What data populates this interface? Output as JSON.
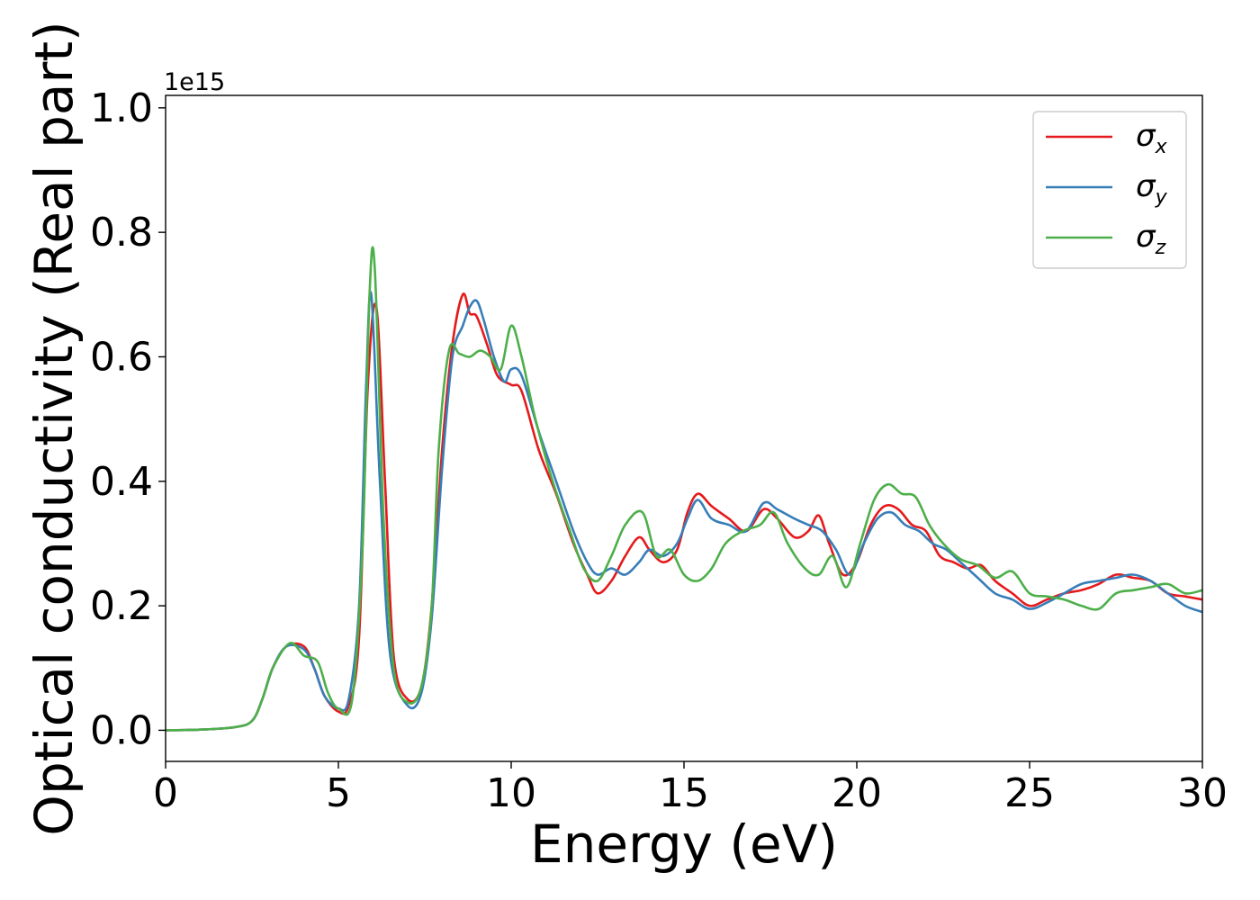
{
  "chart_data": {
    "type": "line",
    "xlabel": "Energy (eV)",
    "ylabel": "Optical conductivity (Real part)",
    "y_offset_text": "1e15",
    "xlim": [
      0,
      30
    ],
    "ylim": [
      -0.05,
      1.02
    ],
    "x_ticks": [
      "0",
      "5",
      "10",
      "15",
      "20",
      "25",
      "30"
    ],
    "y_ticks": [
      "0.0",
      "0.2",
      "0.4",
      "0.6",
      "0.8",
      "1.0"
    ],
    "grid": false,
    "legend_position": "top-right",
    "series": [
      {
        "name": "σx",
        "legend_base": "σ",
        "legend_sub": "x",
        "color": "#e41a1c",
        "x": [
          0,
          1,
          2,
          2.5,
          2.8,
          3.1,
          3.5,
          4.0,
          4.3,
          4.6,
          5.0,
          5.3,
          5.6,
          5.85,
          6.1,
          6.35,
          6.6,
          7.0,
          7.4,
          7.7,
          8.0,
          8.3,
          8.6,
          8.8,
          9.0,
          9.3,
          9.6,
          10.0,
          10.3,
          10.8,
          11.3,
          11.8,
          12.2,
          12.5,
          12.9,
          13.3,
          13.7,
          14.0,
          14.4,
          14.8,
          15.1,
          15.4,
          15.8,
          16.3,
          16.8,
          17.3,
          17.7,
          18.2,
          18.6,
          18.9,
          19.2,
          19.6,
          20.0,
          20.4,
          20.8,
          21.2,
          21.6,
          22.0,
          22.4,
          22.8,
          23.2,
          23.6,
          24.0,
          24.5,
          25.0,
          25.5,
          26.0,
          26.5,
          27.0,
          27.5,
          28.0,
          28.5,
          29.0,
          29.5,
          30.0
        ],
        "y": [
          0,
          0.001,
          0.005,
          0.015,
          0.05,
          0.1,
          0.135,
          0.135,
          0.1,
          0.055,
          0.03,
          0.04,
          0.15,
          0.55,
          0.68,
          0.4,
          0.12,
          0.05,
          0.07,
          0.2,
          0.45,
          0.62,
          0.7,
          0.67,
          0.665,
          0.62,
          0.57,
          0.555,
          0.545,
          0.45,
          0.38,
          0.3,
          0.25,
          0.22,
          0.24,
          0.28,
          0.31,
          0.29,
          0.27,
          0.29,
          0.35,
          0.38,
          0.36,
          0.34,
          0.32,
          0.355,
          0.34,
          0.31,
          0.32,
          0.345,
          0.3,
          0.25,
          0.27,
          0.33,
          0.36,
          0.355,
          0.33,
          0.32,
          0.28,
          0.27,
          0.26,
          0.265,
          0.24,
          0.22,
          0.2,
          0.21,
          0.22,
          0.225,
          0.235,
          0.25,
          0.245,
          0.24,
          0.22,
          0.215,
          0.21
        ]
      },
      {
        "name": "σy",
        "legend_base": "σ",
        "legend_sub": "y",
        "color": "#377eb8",
        "x": [
          0,
          1,
          2,
          2.5,
          2.8,
          3.1,
          3.5,
          4.0,
          4.3,
          4.6,
          5.0,
          5.3,
          5.6,
          5.8,
          5.95,
          6.2,
          6.5,
          7.0,
          7.4,
          7.7,
          8.0,
          8.3,
          8.6,
          8.8,
          9.0,
          9.2,
          9.5,
          9.8,
          10.0,
          10.3,
          10.8,
          11.3,
          11.8,
          12.2,
          12.5,
          12.9,
          13.3,
          13.7,
          14.0,
          14.4,
          14.8,
          15.1,
          15.4,
          15.8,
          16.3,
          16.8,
          17.3,
          17.7,
          18.2,
          18.6,
          19.0,
          19.4,
          19.8,
          20.2,
          20.6,
          21.0,
          21.4,
          21.8,
          22.2,
          22.6,
          23.0,
          23.5,
          24.0,
          24.5,
          25.0,
          25.5,
          26.0,
          26.5,
          27.0,
          27.5,
          28.0,
          28.5,
          29.0,
          29.5,
          30.0
        ],
        "y": [
          0,
          0.001,
          0.005,
          0.015,
          0.05,
          0.1,
          0.135,
          0.13,
          0.1,
          0.055,
          0.035,
          0.05,
          0.2,
          0.55,
          0.7,
          0.4,
          0.12,
          0.04,
          0.06,
          0.18,
          0.42,
          0.6,
          0.65,
          0.68,
          0.69,
          0.66,
          0.6,
          0.56,
          0.58,
          0.57,
          0.48,
          0.4,
          0.32,
          0.27,
          0.25,
          0.26,
          0.25,
          0.27,
          0.29,
          0.28,
          0.3,
          0.34,
          0.37,
          0.34,
          0.33,
          0.32,
          0.365,
          0.355,
          0.34,
          0.33,
          0.32,
          0.29,
          0.25,
          0.3,
          0.34,
          0.35,
          0.33,
          0.32,
          0.3,
          0.29,
          0.27,
          0.245,
          0.22,
          0.21,
          0.195,
          0.205,
          0.22,
          0.235,
          0.24,
          0.245,
          0.25,
          0.24,
          0.22,
          0.2,
          0.19
        ]
      },
      {
        "name": "σz",
        "legend_base": "σ",
        "legend_sub": "z",
        "color": "#4daf4a",
        "x": [
          0,
          1,
          2,
          2.5,
          2.8,
          3.1,
          3.6,
          4.0,
          4.4,
          4.7,
          5.0,
          5.4,
          5.7,
          5.9,
          6.05,
          6.3,
          6.6,
          7.0,
          7.4,
          7.7,
          7.9,
          8.2,
          8.5,
          8.8,
          9.1,
          9.4,
          9.7,
          10.0,
          10.3,
          10.7,
          11.2,
          11.7,
          12.1,
          12.5,
          12.9,
          13.3,
          13.8,
          14.2,
          14.6,
          15.0,
          15.4,
          15.8,
          16.2,
          16.7,
          17.2,
          17.6,
          18.0,
          18.5,
          18.9,
          19.3,
          19.7,
          20.1,
          20.5,
          20.9,
          21.3,
          21.7,
          22.1,
          22.5,
          23.0,
          23.5,
          24.0,
          24.5,
          25.0,
          25.5,
          26.0,
          26.5,
          27.0,
          27.5,
          28.0,
          28.5,
          29.0,
          29.5,
          30.0
        ],
        "y": [
          0,
          0.001,
          0.005,
          0.015,
          0.05,
          0.1,
          0.14,
          0.12,
          0.11,
          0.06,
          0.035,
          0.05,
          0.3,
          0.7,
          0.745,
          0.35,
          0.1,
          0.045,
          0.07,
          0.2,
          0.45,
          0.61,
          0.605,
          0.6,
          0.61,
          0.6,
          0.58,
          0.65,
          0.6,
          0.5,
          0.4,
          0.32,
          0.26,
          0.24,
          0.28,
          0.33,
          0.35,
          0.28,
          0.29,
          0.25,
          0.24,
          0.26,
          0.3,
          0.32,
          0.33,
          0.35,
          0.3,
          0.26,
          0.25,
          0.28,
          0.23,
          0.3,
          0.37,
          0.395,
          0.38,
          0.375,
          0.33,
          0.3,
          0.275,
          0.265,
          0.245,
          0.255,
          0.22,
          0.215,
          0.21,
          0.2,
          0.195,
          0.22,
          0.225,
          0.23,
          0.235,
          0.22,
          0.225
        ]
      }
    ]
  }
}
